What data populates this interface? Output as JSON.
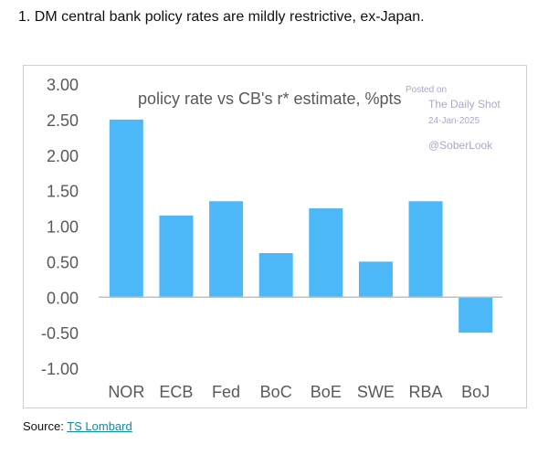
{
  "heading": "1. DM central bank policy rates are mildly restrictive, ex-Japan.",
  "source": {
    "prefix": "Source: ",
    "link_text": "TS Lombard"
  },
  "watermark": {
    "line1": "Posted on",
    "line2": "The Daily Shot",
    "line3": "24-Jan-2025",
    "line4": "@SoberLook"
  },
  "colors": {
    "bar": "#4db8f8",
    "axis_text": "#595959",
    "watermark": "#a9a9c9"
  },
  "chart_data": {
    "type": "bar",
    "title": "policy rate vs CB's r* estimate, %pts",
    "xlabel": "",
    "ylabel": "",
    "categories": [
      "NOR",
      "ECB",
      "Fed",
      "BoC",
      "BoE",
      "SWE",
      "RBA",
      "BoJ"
    ],
    "values": [
      2.5,
      1.15,
      1.35,
      0.62,
      1.25,
      0.5,
      1.35,
      -0.5
    ],
    "ylim": [
      -1.0,
      3.0
    ],
    "yticks": [
      "3.00",
      "2.50",
      "2.00",
      "1.50",
      "1.00",
      "0.50",
      "0.00",
      "-0.50",
      "-1.00"
    ],
    "ytick_values": [
      3.0,
      2.5,
      2.0,
      1.5,
      1.0,
      0.5,
      0.0,
      -0.5,
      -1.0
    ],
    "grid": false,
    "legend": "none"
  }
}
